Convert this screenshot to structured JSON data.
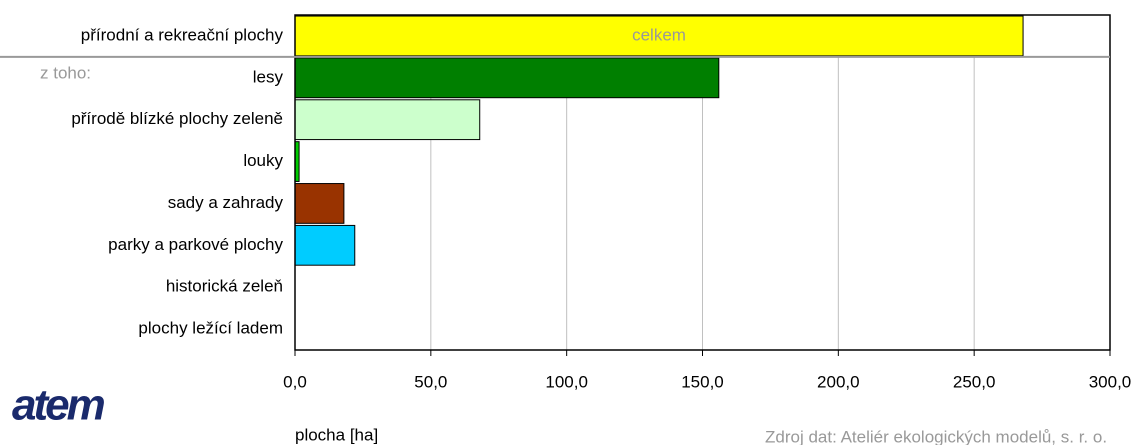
{
  "chart_data": {
    "type": "barh",
    "categories": [
      "přírodní a rekreační plochy",
      "lesy",
      "přírodě blízké plochy zeleně",
      "louky",
      "sady a zahrady",
      "parky a parkové plochy",
      "historická zeleň",
      "plochy ležící ladem"
    ],
    "values": [
      268,
      156,
      68,
      1.5,
      18,
      22,
      0,
      0
    ],
    "colors": [
      "#ffff00",
      "#007f00",
      "#ccffcc",
      "#00cc00",
      "#993300",
      "#00ccff",
      "#ffffff",
      "#ffffff"
    ],
    "xlim": [
      0,
      300
    ],
    "xticks": [
      {
        "value": 0,
        "label": "0,0"
      },
      {
        "value": 50,
        "label": "50,0"
      },
      {
        "value": 100,
        "label": "100,0"
      },
      {
        "value": 150,
        "label": "150,0"
      },
      {
        "value": 200,
        "label": "200,0"
      },
      {
        "value": 250,
        "label": "250,0"
      },
      {
        "value": 300,
        "label": "300,0"
      }
    ],
    "grid": true,
    "xlabel": "plocha [ha]",
    "annotations": {
      "total": "celkem",
      "subset": "z toho:"
    },
    "source": "Zdroj dat: Ateliér ekologických modelů, s. r. o.",
    "logo": "atem"
  }
}
